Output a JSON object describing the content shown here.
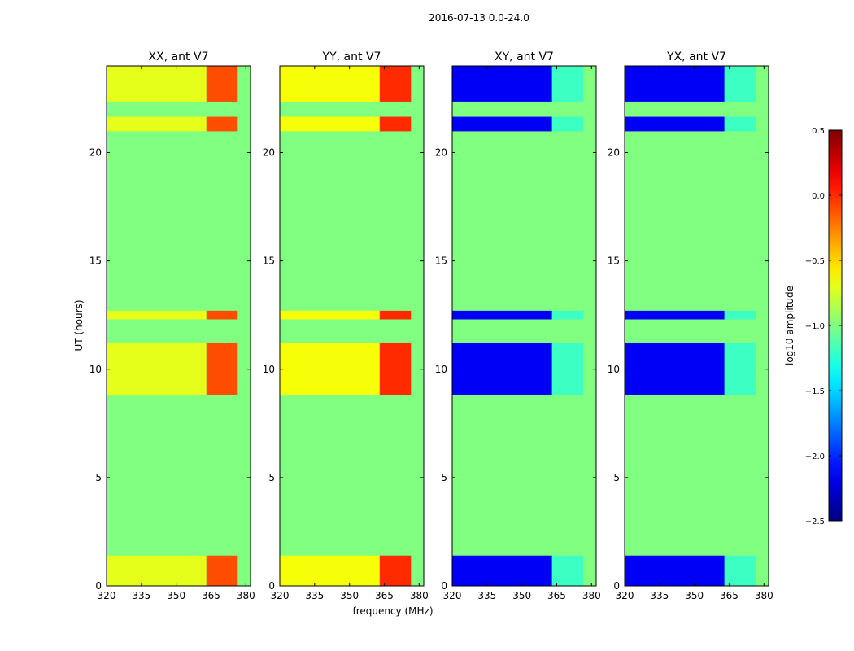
{
  "suptitle": "2016-07-13 0.0-24.0",
  "chart_data": {
    "type": "heatmap",
    "xlabel": "frequency (MHz)",
    "ylabel": "UT (hours)",
    "xlim": [
      320,
      382
    ],
    "ylim": [
      0,
      24
    ],
    "xticks": [
      320,
      335,
      350,
      365,
      380
    ],
    "yticks": [
      0,
      5,
      10,
      15,
      20
    ],
    "no_data_level": -1.0,
    "panels": [
      {
        "title": "XX, ant V7",
        "low_band_level": -0.7,
        "high_band_level": -0.1
      },
      {
        "title": "YY, ant V7",
        "low_band_level": -0.65,
        "high_band_level": 0.0
      },
      {
        "title": "XY, ant V7",
        "low_band_level": -2.15,
        "high_band_level": -1.2
      },
      {
        "title": "YX, ant V7",
        "low_band_level": -2.15,
        "high_band_level": -1.2
      }
    ],
    "high_band_start_mhz": 363,
    "data_end_mhz": 376.5,
    "observed_ut_ranges": [
      [
        0,
        1.4
      ],
      [
        8.8,
        11.2
      ],
      [
        12.3,
        12.7
      ],
      [
        20.98,
        21.65
      ],
      [
        22.35,
        24
      ]
    ],
    "colorbar": {
      "label": "log10 amplitude",
      "min": -2.5,
      "max": 0.5,
      "ticks": [
        0.5,
        0.0,
        -0.5,
        -1.0,
        -1.5,
        -2.0,
        -2.5
      ],
      "tick_labels": [
        "0.5",
        "0.0",
        "−0.5",
        "−1.0",
        "−1.5",
        "−2.0",
        "−2.5"
      ],
      "colormap": "jet"
    }
  }
}
